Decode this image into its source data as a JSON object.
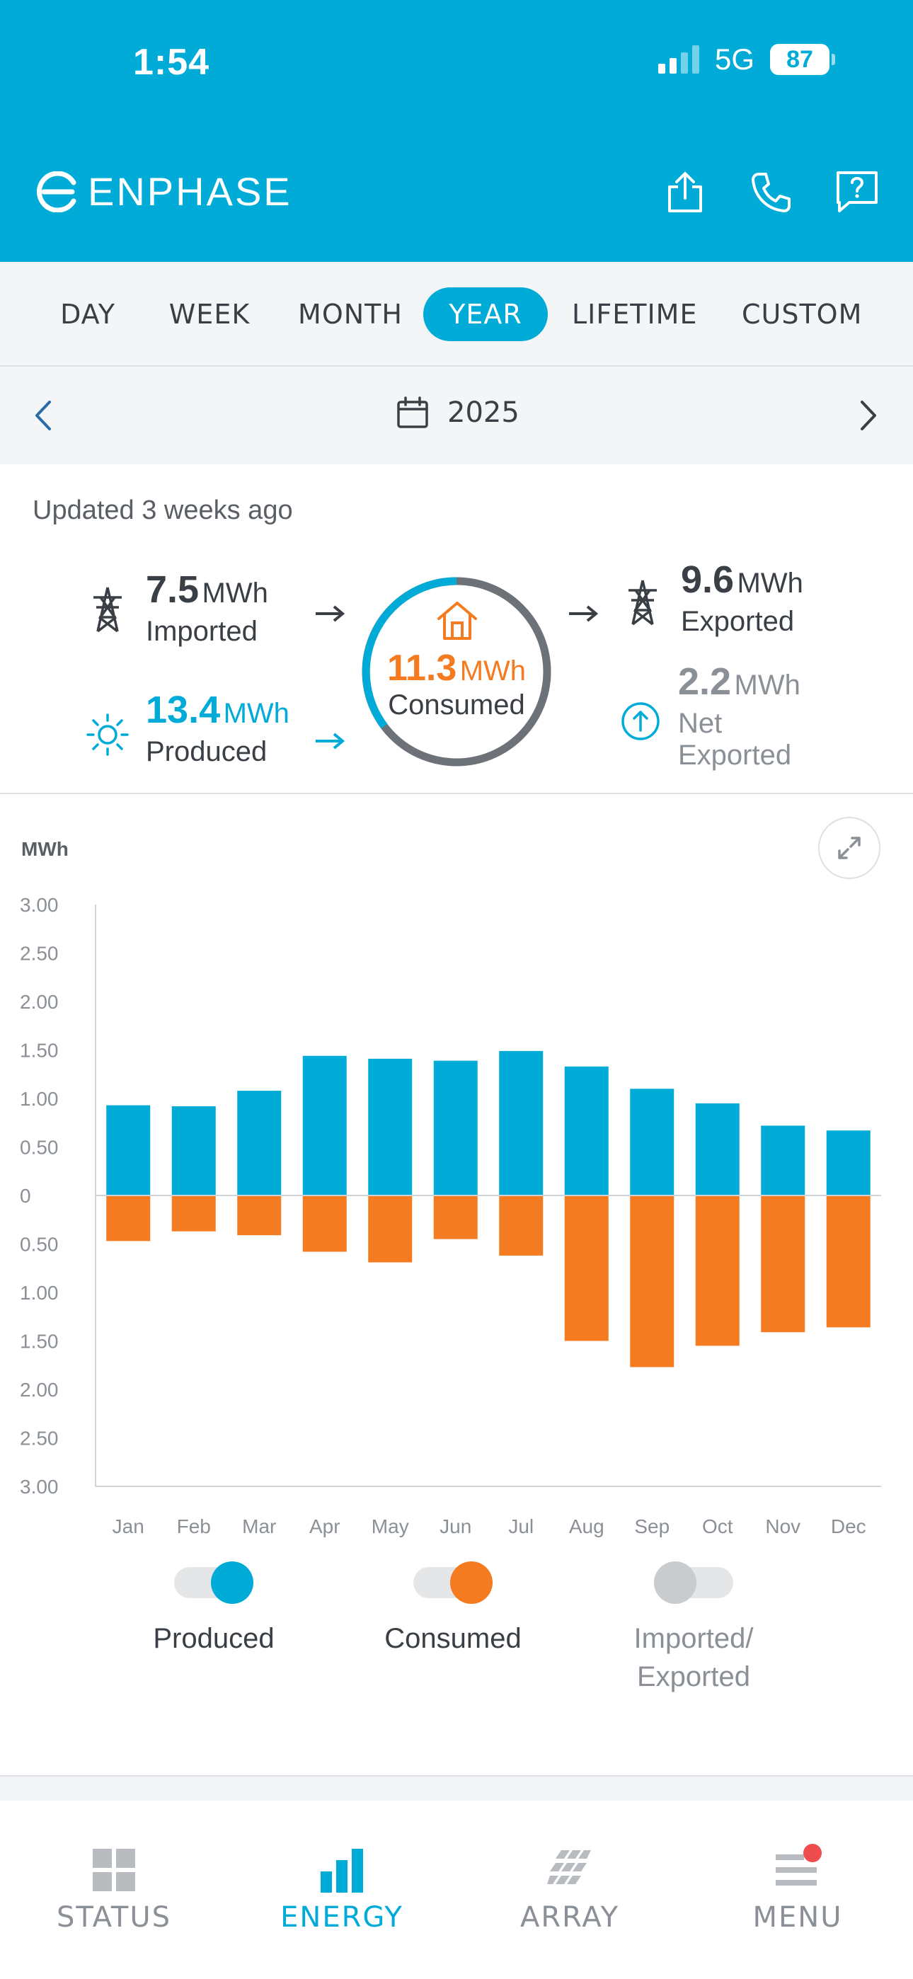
{
  "status_bar": {
    "time": "1:54",
    "network": "5G",
    "battery": "87"
  },
  "header": {
    "brand": "ENPHASE",
    "icons": [
      "share-icon",
      "phone-icon",
      "help-icon"
    ]
  },
  "tabs": [
    {
      "label": "DAY",
      "active": false
    },
    {
      "label": "WEEK",
      "active": false
    },
    {
      "label": "MONTH",
      "active": false
    },
    {
      "label": "YEAR",
      "active": true
    },
    {
      "label": "LIFETIME",
      "active": false
    },
    {
      "label": "CUSTOM",
      "active": false
    }
  ],
  "date_nav": {
    "label": "2025"
  },
  "summary": {
    "updated": "Updated 3 weeks ago",
    "imported": {
      "value": "7.5",
      "unit": "MWh",
      "label": "Imported"
    },
    "produced": {
      "value": "13.4",
      "unit": "MWh",
      "label": "Produced"
    },
    "consumed": {
      "value": "11.3",
      "unit": "MWh",
      "label": "Consumed"
    },
    "exported": {
      "value": "9.6",
      "unit": "MWh",
      "label": "Exported"
    },
    "net": {
      "value": "2.2",
      "unit": "MWh",
      "label_line1": "Net",
      "label_line2": "Exported"
    }
  },
  "colors": {
    "produced": "#00acd7",
    "consumed": "#f47b20",
    "brand": "#00acd7",
    "inactive": "#c9cccf"
  },
  "chart_data": {
    "type": "bar",
    "ylabel": "MWh",
    "ylim": [
      -3.0,
      3.0
    ],
    "yticks": [
      "3.00",
      "2.50",
      "2.00",
      "1.50",
      "1.00",
      "0.50",
      "0",
      "0.50",
      "1.00",
      "1.50",
      "2.00",
      "2.50",
      "3.00"
    ],
    "categories": [
      "Jan",
      "Feb",
      "Mar",
      "Apr",
      "May",
      "Jun",
      "Jul",
      "Aug",
      "Sep",
      "Oct",
      "Nov",
      "Dec"
    ],
    "series": [
      {
        "name": "Produced",
        "values": [
          0.93,
          0.92,
          1.08,
          1.44,
          1.41,
          1.39,
          1.49,
          1.33,
          1.1,
          0.95,
          0.72,
          0.67
        ]
      },
      {
        "name": "Consumed",
        "values": [
          -0.47,
          -0.37,
          -0.41,
          -0.58,
          -0.69,
          -0.45,
          -0.62,
          -1.5,
          -1.77,
          -1.55,
          -1.41,
          -1.36
        ]
      }
    ]
  },
  "legend": [
    {
      "label": "Produced",
      "on": true
    },
    {
      "label": "Consumed",
      "on": true
    },
    {
      "label_line1": "Imported/",
      "label_line2": "Exported",
      "on": false
    }
  ],
  "bottom_nav": [
    {
      "label": "STATUS",
      "active": false
    },
    {
      "label": "ENERGY",
      "active": true
    },
    {
      "label": "ARRAY",
      "active": false
    },
    {
      "label": "MENU",
      "active": false,
      "badge": true
    }
  ]
}
